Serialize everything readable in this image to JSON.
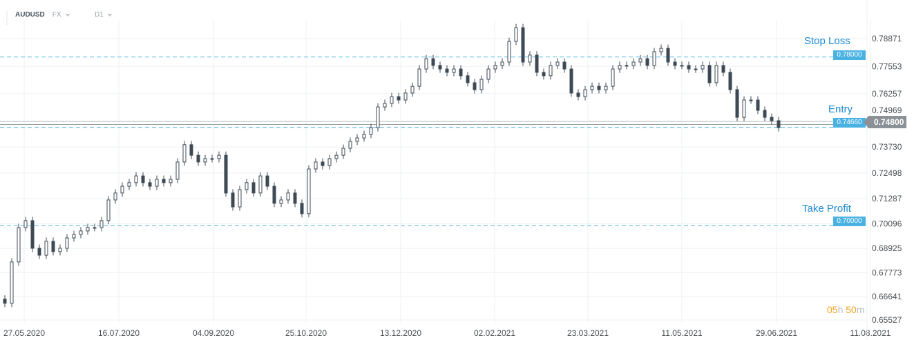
{
  "header": {
    "symbol": "AUDUSD",
    "market": "FX",
    "timeframe": "D1"
  },
  "levels": {
    "stop_loss": {
      "title": "Stop Loss",
      "value": "0.78000"
    },
    "entry": {
      "title": "Entry",
      "value": "0.74660"
    },
    "take_profit": {
      "title": "Take Profit",
      "value": "0.70000"
    },
    "current_price": "0.74800"
  },
  "timer": {
    "hours": "05",
    "h": "h",
    "minutes": "50",
    "m": "m"
  },
  "colors": {
    "level_line": "#4ab2e3",
    "level_title": "#1c8ad3",
    "candle": "#3d4a55",
    "current_tag": "#8a9197",
    "timer": "#f4a21b"
  },
  "chart_data": {
    "type": "candlestick",
    "title": "",
    "ylim": [
      0.65527,
      0.78871
    ],
    "y_ticks": [
      "0.78871",
      "0.77553",
      "0.76257",
      "0.74969",
      "0.73730",
      "0.72498",
      "0.71287",
      "0.70096",
      "0.68925",
      "0.67773",
      "0.66641",
      "0.65527"
    ],
    "x_ticks": [
      "27.05.2020",
      "16.07.2020",
      "04.09.2020",
      "25.10.2020",
      "13.12.2020",
      "02.02.2021",
      "23.03.2021",
      "11.05.2021",
      "29.06.2021",
      "11.08.2021"
    ],
    "grid": true,
    "closes": [
      0.6632,
      0.6828,
      0.6991,
      0.7024,
      0.6893,
      0.686,
      0.6926,
      0.6877,
      0.6893,
      0.6942,
      0.6958,
      0.6975,
      0.6991,
      0.6991,
      0.7024,
      0.7122,
      0.7155,
      0.7187,
      0.7204,
      0.7236,
      0.7204,
      0.7187,
      0.722,
      0.7204,
      0.722,
      0.7302,
      0.7384,
      0.7334,
      0.7302,
      0.7318,
      0.7318,
      0.7334,
      0.7155,
      0.7089,
      0.7171,
      0.7204,
      0.7155,
      0.7236,
      0.7187,
      0.7106,
      0.7122,
      0.7155,
      0.7106,
      0.7057,
      0.7269,
      0.7302,
      0.7285,
      0.7318,
      0.7334,
      0.7367,
      0.74,
      0.7416,
      0.7433,
      0.7465,
      0.7563,
      0.758,
      0.7612,
      0.7596,
      0.7629,
      0.7661,
      0.7743,
      0.7792,
      0.776,
      0.7743,
      0.7727,
      0.7743,
      0.7711,
      0.7678,
      0.7645,
      0.7694,
      0.7743,
      0.776,
      0.7776,
      0.7874,
      0.7939,
      0.7776,
      0.7809,
      0.7727,
      0.7711,
      0.776,
      0.7776,
      0.7743,
      0.7629,
      0.7612,
      0.7645,
      0.7661,
      0.7645,
      0.7661,
      0.7743,
      0.776,
      0.776,
      0.7776,
      0.7792,
      0.776,
      0.7825,
      0.7841,
      0.7776,
      0.776,
      0.776,
      0.7743,
      0.7743,
      0.776,
      0.7678,
      0.776,
      0.7727,
      0.7645,
      0.7514,
      0.7596,
      0.7596,
      0.7547,
      0.7514,
      0.7498,
      0.7465
    ]
  }
}
